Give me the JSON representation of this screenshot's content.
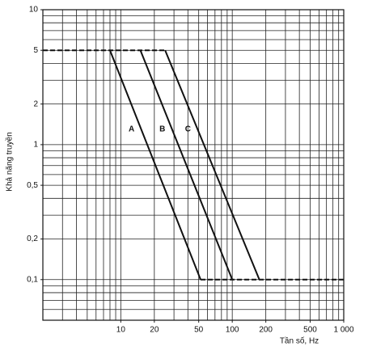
{
  "chart_data": {
    "type": "line",
    "x_label": "Tần số, Hz",
    "y_label": "Khả năng truyền",
    "log_x": true,
    "log_y": true,
    "grid": true,
    "xlim": [
      2,
      1000
    ],
    "ylim": [
      0.05,
      10
    ],
    "xticks": [
      10,
      20,
      50,
      100,
      200,
      500,
      {
        "value": 1000,
        "label": "1 000"
      }
    ],
    "yticks": [
      {
        "value": 0.1,
        "label": "0,1"
      },
      {
        "value": 0.2,
        "label": "0,2"
      },
      {
        "value": 0.5,
        "label": "0,5"
      },
      1,
      2,
      5,
      10
    ],
    "xgrid": [
      2,
      3,
      4,
      5,
      6,
      7,
      8,
      9,
      10,
      20,
      30,
      40,
      50,
      60,
      70,
      80,
      90,
      100,
      200,
      300,
      400,
      500,
      600,
      700,
      800,
      900,
      1000
    ],
    "ygrid": [
      0.05,
      0.06,
      0.07,
      0.08,
      0.09,
      0.1,
      0.2,
      0.3,
      0.4,
      0.5,
      0.6,
      0.7,
      0.8,
      0.9,
      1,
      2,
      3,
      4,
      5,
      6,
      7,
      8,
      9,
      10
    ],
    "series": [
      {
        "name": "A",
        "color": "#111111",
        "x": [
          8,
          52
        ],
        "values": [
          5,
          0.1
        ]
      },
      {
        "name": "B",
        "color": "#111111",
        "x": [
          15,
          100
        ],
        "values": [
          5,
          0.1
        ]
      },
      {
        "name": "C",
        "color": "#111111",
        "x": [
          25,
          175
        ],
        "values": [
          5,
          0.1
        ]
      }
    ],
    "dashed_lines": [
      {
        "x": [
          2,
          25
        ],
        "values": [
          5,
          5
        ]
      },
      {
        "x": [
          52,
          1000
        ],
        "values": [
          0.1,
          0.1
        ]
      }
    ]
  }
}
